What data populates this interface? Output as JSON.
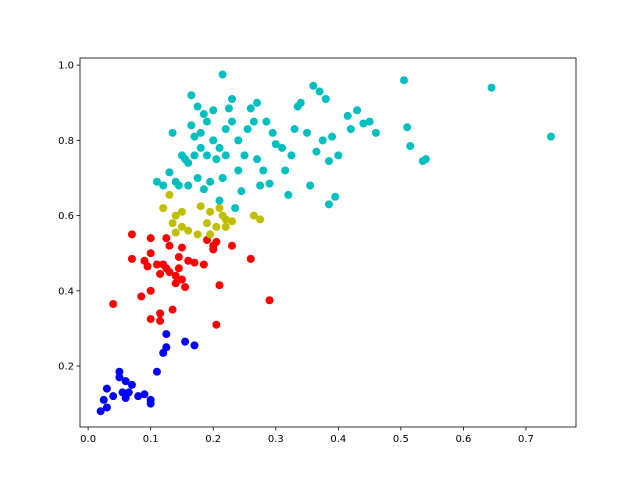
{
  "chart_data": {
    "type": "scatter",
    "xlim": [
      -0.013,
      0.78
    ],
    "ylim": [
      0.038,
      1.019
    ],
    "xticks": [
      {
        "value": 0,
        "label": "0.0"
      },
      0.1,
      0.2,
      0.3,
      0.4,
      0.5,
      0.6,
      0.7
    ],
    "yticks": [
      0.2,
      0.4,
      0.6,
      0.8,
      {
        "value": 1,
        "label": "1.0"
      }
    ],
    "grid": false,
    "series": [
      {
        "color": "#0000ff",
        "x": [
          0.02,
          0.03,
          0.025,
          0.03,
          0.04,
          0.05,
          0.05,
          0.06,
          0.055,
          0.06,
          0.07,
          0.08,
          0.09,
          0.1,
          0.1,
          0.11,
          0.12,
          0.125,
          0.125,
          0.155,
          0.17,
          0.065
        ],
        "values": [
          0.08,
          0.09,
          0.11,
          0.14,
          0.12,
          0.17,
          0.185,
          0.16,
          0.13,
          0.115,
          0.15,
          0.12,
          0.125,
          0.1,
          0.11,
          0.185,
          0.235,
          0.25,
          0.285,
          0.265,
          0.255,
          0.13
        ]
      },
      {
        "color": "#ff0000",
        "x": [
          0.04,
          0.07,
          0.07,
          0.085,
          0.09,
          0.095,
          0.1,
          0.1,
          0.1,
          0.1,
          0.11,
          0.115,
          0.115,
          0.115,
          0.12,
          0.125,
          0.125,
          0.13,
          0.13,
          0.135,
          0.14,
          0.14,
          0.145,
          0.145,
          0.15,
          0.15,
          0.155,
          0.16,
          0.17,
          0.185,
          0.19,
          0.2,
          0.2,
          0.205,
          0.205,
          0.21,
          0.23,
          0.26,
          0.29
        ],
        "values": [
          0.365,
          0.55,
          0.485,
          0.385,
          0.48,
          0.465,
          0.54,
          0.5,
          0.325,
          0.4,
          0.47,
          0.445,
          0.34,
          0.32,
          0.47,
          0.54,
          0.46,
          0.52,
          0.45,
          0.35,
          0.44,
          0.42,
          0.49,
          0.46,
          0.515,
          0.43,
          0.41,
          0.48,
          0.475,
          0.47,
          0.535,
          0.52,
          0.51,
          0.53,
          0.31,
          0.415,
          0.52,
          0.485,
          0.375
        ]
      },
      {
        "color": "#bfbf00",
        "x": [
          0.12,
          0.13,
          0.135,
          0.14,
          0.14,
          0.15,
          0.15,
          0.16,
          0.175,
          0.18,
          0.19,
          0.195,
          0.195,
          0.205,
          0.21,
          0.215,
          0.22,
          0.22,
          0.23,
          0.265,
          0.275
        ],
        "values": [
          0.62,
          0.655,
          0.58,
          0.6,
          0.555,
          0.61,
          0.57,
          0.56,
          0.55,
          0.625,
          0.58,
          0.55,
          0.61,
          0.57,
          0.62,
          0.6,
          0.59,
          0.57,
          0.585,
          0.6,
          0.59
        ]
      },
      {
        "color": "#00bfbf",
        "x": [
          0.11,
          0.12,
          0.13,
          0.135,
          0.14,
          0.145,
          0.15,
          0.155,
          0.16,
          0.16,
          0.165,
          0.165,
          0.17,
          0.17,
          0.175,
          0.175,
          0.18,
          0.18,
          0.185,
          0.185,
          0.19,
          0.19,
          0.195,
          0.2,
          0.2,
          0.205,
          0.21,
          0.21,
          0.215,
          0.215,
          0.22,
          0.22,
          0.225,
          0.23,
          0.23,
          0.235,
          0.24,
          0.24,
          0.245,
          0.25,
          0.255,
          0.26,
          0.265,
          0.27,
          0.27,
          0.275,
          0.28,
          0.285,
          0.29,
          0.295,
          0.3,
          0.31,
          0.315,
          0.32,
          0.325,
          0.33,
          0.335,
          0.34,
          0.35,
          0.355,
          0.36,
          0.365,
          0.37,
          0.375,
          0.38,
          0.385,
          0.385,
          0.39,
          0.395,
          0.4,
          0.415,
          0.42,
          0.43,
          0.44,
          0.45,
          0.46,
          0.505,
          0.51,
          0.515,
          0.535,
          0.54,
          0.645,
          0.74
        ],
        "values": [
          0.69,
          0.68,
          0.715,
          0.82,
          0.69,
          0.68,
          0.76,
          0.75,
          0.68,
          0.74,
          0.84,
          0.92,
          0.76,
          0.81,
          0.7,
          0.89,
          0.78,
          0.82,
          0.67,
          0.87,
          0.76,
          0.85,
          0.69,
          0.88,
          0.8,
          0.75,
          0.78,
          0.64,
          0.975,
          0.7,
          0.83,
          0.76,
          0.885,
          0.91,
          0.85,
          0.62,
          0.72,
          0.8,
          0.665,
          0.76,
          0.83,
          0.885,
          0.85,
          0.9,
          0.75,
          0.68,
          0.72,
          0.85,
          0.685,
          0.82,
          0.79,
          0.78,
          0.72,
          0.655,
          0.76,
          0.83,
          0.89,
          0.9,
          0.82,
          0.68,
          0.945,
          0.77,
          0.93,
          0.8,
          0.91,
          0.745,
          0.63,
          0.81,
          0.65,
          0.76,
          0.865,
          0.83,
          0.88,
          0.845,
          0.85,
          0.82,
          0.96,
          0.835,
          0.785,
          0.745,
          0.75,
          0.94,
          0.81
        ]
      }
    ]
  }
}
